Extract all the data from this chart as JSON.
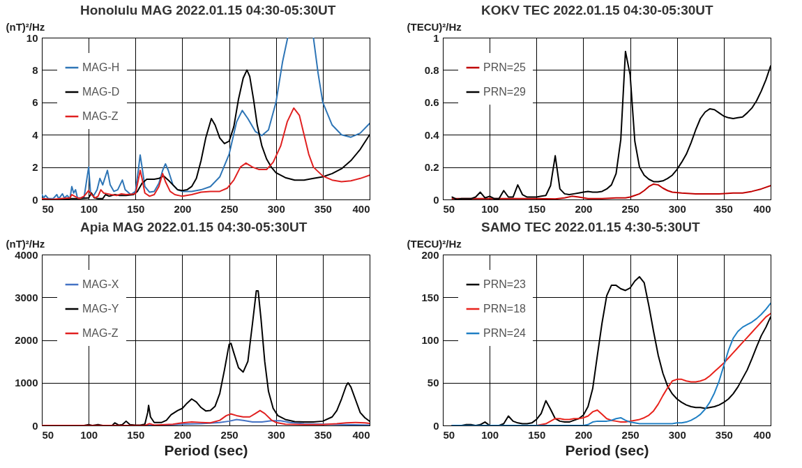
{
  "chart_data": [
    {
      "type": "line",
      "title": "Honolulu MAG 2022.01.15 04:30-05:30UT",
      "ylabel": "(nT)²/Hz",
      "xlim": [
        50,
        400
      ],
      "xticks": [
        50,
        100,
        150,
        200,
        250,
        300,
        350,
        400
      ],
      "ylim": [
        0,
        10
      ],
      "yticks": [
        0,
        2,
        4,
        6,
        8,
        10
      ],
      "grid": true,
      "legend": "top left",
      "series": [
        {
          "name": "MAG-H",
          "color": "#2e75b6",
          "x": [
            50,
            52,
            54,
            57,
            62,
            66,
            68,
            72,
            74,
            77,
            80,
            82,
            84,
            86,
            88,
            95,
            100,
            102,
            105,
            109,
            112,
            115,
            120,
            123,
            127,
            131,
            136,
            139,
            145,
            150,
            153,
            155,
            157,
            160,
            165,
            170,
            175,
            179,
            182,
            185,
            190,
            195,
            200,
            210,
            220,
            230,
            240,
            250,
            258,
            264,
            270,
            278,
            285,
            292,
            300,
            307,
            312.5,
            327,
            340,
            345,
            350,
            360,
            370,
            380,
            390,
            400
          ],
          "values": [
            0.3,
            0.1,
            0.25,
            0.05,
            0.05,
            0.3,
            0.05,
            0.35,
            0.1,
            0.25,
            0.05,
            0.8,
            0.4,
            0.6,
            0.1,
            0.1,
            2.0,
            0.4,
            0.2,
            0.6,
            1.3,
            0.9,
            1.8,
            0.9,
            0.5,
            0.6,
            1.2,
            0.6,
            0.3,
            0.5,
            1.8,
            2.75,
            2.0,
            0.8,
            0.45,
            0.5,
            1.0,
            1.8,
            2.2,
            1.8,
            0.9,
            0.6,
            0.5,
            0.5,
            0.6,
            0.8,
            1.4,
            2.8,
            4.8,
            5.5,
            5.0,
            4.2,
            3.95,
            4.3,
            6.0,
            8.5,
            10,
            null,
            10,
            7.8,
            6.0,
            4.6,
            4.0,
            3.85,
            4.1,
            4.7
          ]
        },
        {
          "name": "MAG-D",
          "color": "#000000",
          "x": [
            50,
            60,
            70,
            80,
            90,
            100,
            103,
            106,
            110,
            115,
            118,
            122,
            128,
            133,
            140,
            148,
            152,
            157,
            162,
            170,
            175,
            180,
            185,
            190,
            195,
            200,
            205,
            210,
            215,
            220,
            225,
            231,
            235,
            240,
            245,
            250,
            255,
            260,
            265,
            269,
            272,
            276,
            280,
            285,
            290,
            295,
            300,
            310,
            320,
            330,
            340,
            350,
            360,
            370,
            380,
            390,
            400
          ],
          "values": [
            0.05,
            0.0,
            0.0,
            0.05,
            0.05,
            0.1,
            0.4,
            0.1,
            0.05,
            0.05,
            0.3,
            0.2,
            0.3,
            0.25,
            0.25,
            0.3,
            0.5,
            1.0,
            1.25,
            1.25,
            1.3,
            1.45,
            1.2,
            0.9,
            0.6,
            0.55,
            0.6,
            0.8,
            1.3,
            2.4,
            3.8,
            5.0,
            4.6,
            3.8,
            3.45,
            3.6,
            4.5,
            6.2,
            7.5,
            8.0,
            7.6,
            6.2,
            4.6,
            3.3,
            2.5,
            2.0,
            1.65,
            1.35,
            1.2,
            1.2,
            1.3,
            1.4,
            1.6,
            1.9,
            2.4,
            3.1,
            4.0
          ]
        },
        {
          "name": "MAG-Z",
          "color": "#e02020",
          "x": [
            50,
            60,
            70,
            80,
            82,
            85,
            90,
            95,
            100,
            103,
            107,
            110,
            113,
            116,
            120,
            124,
            130,
            135,
            140,
            150,
            153,
            155,
            157,
            160,
            165,
            170,
            175,
            179,
            182,
            187,
            192,
            200,
            210,
            220,
            230,
            240,
            248,
            255,
            262,
            268,
            275,
            282,
            290,
            297,
            305,
            312,
            319,
            325,
            330,
            335,
            340,
            350,
            360,
            370,
            380,
            390,
            400
          ],
          "values": [
            0.05,
            0.0,
            0.05,
            0.1,
            0.3,
            0.2,
            0.05,
            0.2,
            0.55,
            0.3,
            0.1,
            0.2,
            0.6,
            0.4,
            0.35,
            0.3,
            0.25,
            0.35,
            0.3,
            0.35,
            1.2,
            1.8,
            1.3,
            0.4,
            0.2,
            0.3,
            0.8,
            1.6,
            1.1,
            0.5,
            0.3,
            0.2,
            0.3,
            0.45,
            0.5,
            0.5,
            0.7,
            1.2,
            2.0,
            2.25,
            2.0,
            1.85,
            1.85,
            2.3,
            3.3,
            4.8,
            5.65,
            5.2,
            4.0,
            2.8,
            2.0,
            1.45,
            1.2,
            1.1,
            1.15,
            1.3,
            1.5
          ]
        }
      ]
    },
    {
      "type": "line",
      "title": "KOKV TEC  2022.01.15 04:30-05:30UT",
      "ylabel": "(TECU)²/Hz",
      "xlim": [
        50,
        400
      ],
      "xticks": [
        50,
        100,
        150,
        200,
        250,
        300,
        350,
        400
      ],
      "ylim": [
        0,
        1
      ],
      "yticks": [
        0,
        0.2,
        0.4,
        0.6,
        0.8,
        1
      ],
      "grid": true,
      "legend": "top left",
      "series": [
        {
          "name": "PRN=25",
          "color": "#c00000",
          "x": [
            60,
            70,
            100,
            150,
            170,
            180,
            188,
            195,
            205,
            220,
            235,
            245,
            250,
            255,
            260,
            265,
            270,
            275,
            280,
            285,
            290,
            295,
            305,
            320,
            345,
            360,
            370,
            380,
            390,
            400
          ],
          "values": [
            0.005,
            0.005,
            0.005,
            0.005,
            0.003,
            0.01,
            0.02,
            0.015,
            0.005,
            0.005,
            0.01,
            0.01,
            0.015,
            0.025,
            0.035,
            0.055,
            0.08,
            0.095,
            0.09,
            0.07,
            0.055,
            0.045,
            0.04,
            0.035,
            0.035,
            0.04,
            0.04,
            0.05,
            0.065,
            0.085
          ]
        },
        {
          "name": "PRN=29",
          "color": "#000000",
          "x": [
            60,
            65,
            70,
            75,
            80,
            85,
            90,
            95,
            100,
            105,
            110,
            115,
            120,
            125,
            130,
            135,
            140,
            145,
            150,
            155,
            160,
            165,
            170,
            175,
            180,
            185,
            190,
            195,
            200,
            205,
            210,
            215,
            220,
            225,
            230,
            235,
            240,
            245,
            250,
            255,
            260,
            265,
            270,
            275,
            280,
            285,
            290,
            295,
            300,
            305,
            310,
            315,
            320,
            325,
            330,
            335,
            340,
            345,
            350,
            355,
            360,
            365,
            370,
            375,
            380,
            385,
            390,
            395,
            400
          ],
          "values": [
            0.015,
            0.0,
            0.005,
            0.005,
            0.005,
            0.015,
            0.045,
            0.01,
            0.02,
            0.005,
            0.005,
            0.055,
            0.015,
            0.015,
            0.09,
            0.03,
            0.015,
            0.015,
            0.015,
            0.02,
            0.025,
            0.085,
            0.27,
            0.065,
            0.035,
            0.03,
            0.035,
            0.04,
            0.045,
            0.05,
            0.045,
            0.045,
            0.05,
            0.065,
            0.09,
            0.16,
            0.37,
            0.915,
            0.77,
            0.36,
            0.2,
            0.15,
            0.125,
            0.11,
            0.11,
            0.115,
            0.13,
            0.15,
            0.185,
            0.23,
            0.28,
            0.35,
            0.43,
            0.5,
            0.54,
            0.56,
            0.555,
            0.535,
            0.515,
            0.505,
            0.5,
            0.505,
            0.51,
            0.535,
            0.565,
            0.61,
            0.67,
            0.74,
            0.825
          ]
        }
      ]
    },
    {
      "type": "line",
      "title": "Apia  MAG 2022.01.15 04:30-05:30UT",
      "ylabel": "(nT)²/Hz",
      "xlabel": "Period (sec)",
      "xlim": [
        50,
        400
      ],
      "xticks": [
        50,
        100,
        150,
        200,
        250,
        300,
        350,
        400
      ],
      "ylim": [
        0,
        4000
      ],
      "yticks": [
        0,
        1000,
        2000,
        3000,
        4000
      ],
      "grid": true,
      "legend": "top left",
      "series": [
        {
          "name": "MAG-X",
          "color": "#4472c4",
          "x": [
            50,
            160,
            180,
            200,
            220,
            240,
            250,
            258,
            265,
            275,
            285,
            295,
            305,
            315,
            330,
            350,
            370,
            400
          ],
          "values": [
            0,
            0,
            10,
            30,
            40,
            70,
            100,
            140,
            120,
            80,
            80,
            110,
            110,
            70,
            40,
            30,
            20,
            10
          ]
        },
        {
          "name": "MAG-Y",
          "color": "#000000",
          "x": [
            50,
            95,
            100,
            104,
            110,
            115,
            125,
            128,
            132,
            136,
            140,
            144,
            150,
            155,
            160,
            163,
            164,
            166,
            170,
            178,
            183,
            188,
            195,
            200,
            205,
            210,
            215,
            220,
            225,
            230,
            235,
            240,
            245,
            250,
            252,
            255,
            260,
            265,
            270,
            275,
            279,
            281,
            284,
            288,
            292,
            297,
            302,
            310,
            320,
            330,
            340,
            350,
            360,
            365,
            370,
            375,
            377,
            380,
            385,
            390,
            395,
            400
          ],
          "values": [
            0,
            0,
            20,
            0,
            20,
            0,
            0,
            60,
            10,
            20,
            100,
            20,
            10,
            10,
            30,
            300,
            470,
            200,
            70,
            70,
            120,
            250,
            350,
            400,
            520,
            620,
            550,
            420,
            340,
            350,
            450,
            750,
            1300,
            1900,
            1920,
            1700,
            1350,
            1250,
            1500,
            2400,
            3150,
            3150,
            2500,
            1500,
            800,
            400,
            230,
            140,
            90,
            80,
            80,
            100,
            200,
            350,
            620,
            930,
            1000,
            900,
            600,
            300,
            180,
            100
          ]
        },
        {
          "name": "MAG-Z",
          "color": "#e02020",
          "x": [
            50,
            160,
            165,
            170,
            190,
            200,
            210,
            220,
            230,
            240,
            247,
            252,
            258,
            265,
            272,
            278,
            283,
            288,
            295,
            300,
            310,
            330,
            350,
            365,
            375,
            385,
            395,
            400
          ],
          "values": [
            0,
            0,
            40,
            10,
            30,
            60,
            80,
            70,
            60,
            120,
            230,
            270,
            230,
            200,
            200,
            280,
            350,
            280,
            130,
            70,
            30,
            20,
            20,
            40,
            60,
            70,
            60,
            50
          ]
        }
      ]
    },
    {
      "type": "line",
      "title": "SAMO TEC  2022.01.15 4:30-5:30UT",
      "ylabel": "(TECU)²/Hz",
      "xlabel": "Period (sec)",
      "xlim": [
        50,
        400
      ],
      "xticks": [
        50,
        100,
        150,
        200,
        250,
        300,
        350,
        400
      ],
      "ylim": [
        0,
        200
      ],
      "yticks": [
        0,
        50,
        100,
        150,
        200
      ],
      "grid": true,
      "legend": "top left",
      "series": [
        {
          "name": "PRN=23",
          "color": "#000000",
          "x": [
            60,
            65,
            70,
            75,
            80,
            85,
            90,
            95,
            100,
            105,
            110,
            115,
            120,
            125,
            130,
            135,
            140,
            145,
            150,
            155,
            160,
            165,
            170,
            175,
            180,
            185,
            190,
            195,
            200,
            205,
            210,
            215,
            220,
            225,
            230,
            235,
            240,
            245,
            250,
            255,
            260,
            265,
            270,
            275,
            280,
            285,
            290,
            295,
            300,
            305,
            310,
            315,
            320,
            325,
            330,
            335,
            340,
            345,
            350,
            355,
            360,
            365,
            370,
            375,
            380,
            385,
            390,
            395,
            400
          ],
          "values": [
            0,
            0,
            0,
            1,
            1,
            0,
            1,
            4,
            0,
            0,
            0,
            2,
            11,
            5,
            3,
            2,
            2,
            3,
            7,
            14,
            29,
            19,
            8,
            5,
            4,
            4,
            6,
            8,
            12,
            22,
            43,
            82,
            120,
            152,
            164,
            164,
            160,
            158,
            161,
            169,
            174,
            167,
            140,
            110,
            82,
            61,
            46,
            37,
            31,
            27,
            24,
            22,
            21,
            21,
            20,
            21,
            22,
            24,
            27,
            31,
            37,
            45,
            55,
            65,
            78,
            92,
            105,
            115,
            127
          ]
        },
        {
          "name": "PRN=18",
          "color": "#e8221b",
          "x": [
            60,
            150,
            155,
            160,
            165,
            170,
            175,
            180,
            185,
            190,
            195,
            200,
            205,
            210,
            215,
            220,
            225,
            230,
            235,
            240,
            245,
            250,
            255,
            260,
            265,
            270,
            275,
            280,
            285,
            290,
            295,
            300,
            305,
            310,
            315,
            320,
            325,
            330,
            335,
            340,
            345,
            350,
            355,
            360,
            365,
            370,
            375,
            380,
            385,
            390,
            395,
            400
          ],
          "values": [
            0,
            0,
            1,
            2,
            5,
            8,
            8,
            7,
            7,
            8,
            8,
            9,
            11,
            16,
            18,
            13,
            8,
            6,
            5,
            4,
            4,
            5,
            6,
            7,
            9,
            12,
            17,
            25,
            35,
            44,
            52,
            54,
            54,
            52,
            51,
            51,
            52,
            54,
            58,
            63,
            68,
            73,
            79,
            85,
            91,
            97,
            103,
            109,
            115,
            121,
            127,
            131
          ]
        },
        {
          "name": "PRN=24",
          "color": "#1f7fc4",
          "x": [
            60,
            200,
            205,
            210,
            215,
            220,
            225,
            230,
            235,
            240,
            245,
            250,
            255,
            260,
            265,
            270,
            280,
            285,
            295,
            300,
            305,
            310,
            315,
            320,
            325,
            330,
            335,
            340,
            345,
            350,
            355,
            360,
            365,
            370,
            375,
            380,
            385,
            390,
            395,
            400
          ],
          "values": [
            0,
            0,
            1,
            4,
            5,
            5,
            5,
            6,
            8,
            9,
            6,
            4,
            3,
            2,
            2,
            2,
            2,
            2,
            2,
            3,
            3,
            4,
            6,
            9,
            13,
            19,
            27,
            38,
            52,
            70,
            88,
            102,
            110,
            115,
            118,
            121,
            125,
            130,
            136,
            143
          ]
        }
      ]
    }
  ]
}
